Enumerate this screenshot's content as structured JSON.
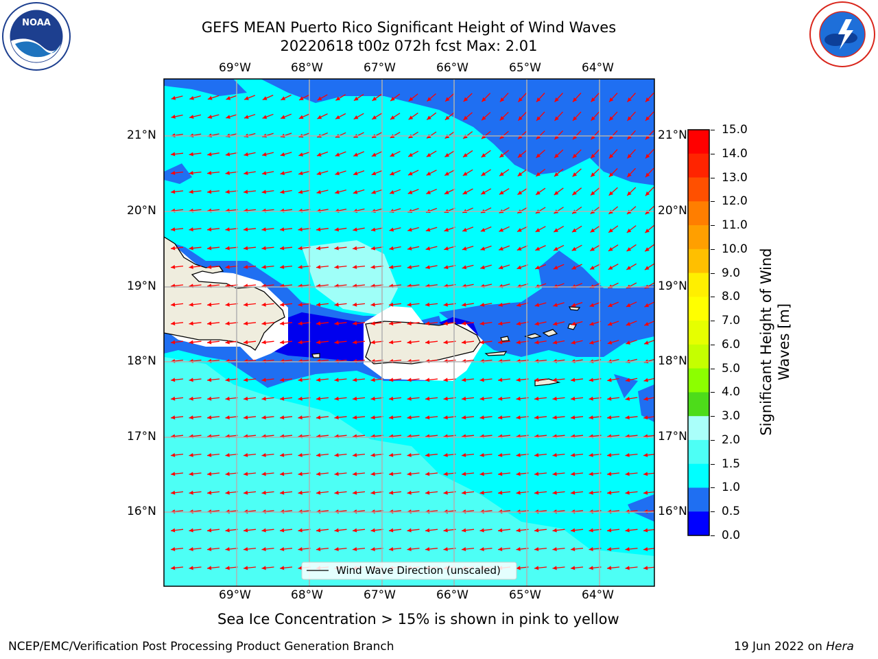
{
  "title": {
    "line1": "GEFS MEAN Puerto Rico Significant Height of Wind Waves",
    "line2": "20220618 t00z 072h fcst   Max: 2.01"
  },
  "logos": {
    "noaa_text": "NOAA",
    "noaa_ring": "NATIONAL OCEANIC AND ATMOSPHERIC ADMINISTRATION · U.S. DEPARTMENT OF COMMERCE",
    "nws_ring": "NATIONAL WEATHER SERVICE"
  },
  "map": {
    "lon_labels": [
      "69°W",
      "68°W",
      "67°W",
      "66°W",
      "65°W",
      "64°W"
    ],
    "lat_labels": [
      "21°N",
      "20°N",
      "19°N",
      "18°N",
      "17°N",
      "16°N"
    ],
    "legend_text": "Wind Wave Direction (unscaled)",
    "colors": {
      "deep_blue": "#0000ee",
      "blue": "#1f6ff2",
      "cyan": "#00ffff",
      "light_cyan": "#4dfff5",
      "pale_cyan": "#9ffff8",
      "land": "#efedde",
      "arrow": "#ff0000",
      "grid": "#b0b0b0"
    }
  },
  "colorbar": {
    "ticks": [
      "15.0",
      "14.0",
      "13.0",
      "12.0",
      "11.0",
      "10.0",
      "9.0",
      "8.0",
      "7.0",
      "6.0",
      "5.0",
      "4.0",
      "3.0",
      "2.0",
      "1.5",
      "1.0",
      "0.5",
      "0.0"
    ],
    "colors_top_to_bottom": [
      "#ff0000",
      "#ff2400",
      "#ff5000",
      "#ff7e00",
      "#ff9f00",
      "#ffbf00",
      "#ffef00",
      "#ffff00",
      "#e6ff00",
      "#c5ff00",
      "#8cff00",
      "#4ddc1a",
      "#00e600",
      "#55f57a",
      "#aafffa",
      "#4dfff5",
      "#00ffff",
      "#1f6ff2",
      "#0000ff"
    ],
    "label": "Significant Height of Wind Waves [m]"
  },
  "caption": "Sea Ice Concentration > 15% is shown in pink to yellow",
  "footer": {
    "left": "NCEP/EMC/Verification Post Processing Product Generation Branch",
    "right_prefix": "19 Jun 2022 on ",
    "right_host": "Hera"
  }
}
